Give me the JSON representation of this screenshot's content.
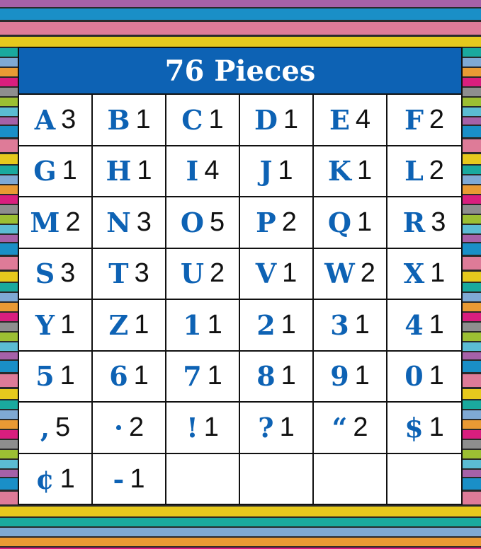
{
  "title": "76 Pieces",
  "pieces": [
    {
      "char": "A",
      "count": "3"
    },
    {
      "char": "B",
      "count": "1"
    },
    {
      "char": "C",
      "count": "1"
    },
    {
      "char": "D",
      "count": "1"
    },
    {
      "char": "E",
      "count": "4"
    },
    {
      "char": "F",
      "count": "2"
    },
    {
      "char": "G",
      "count": "1"
    },
    {
      "char": "H",
      "count": "1"
    },
    {
      "char": "I",
      "count": "4"
    },
    {
      "char": "J",
      "count": "1"
    },
    {
      "char": "K",
      "count": "1"
    },
    {
      "char": "L",
      "count": "2"
    },
    {
      "char": "M",
      "count": "2"
    },
    {
      "char": "N",
      "count": "3"
    },
    {
      "char": "O",
      "count": "5"
    },
    {
      "char": "P",
      "count": "2"
    },
    {
      "char": "Q",
      "count": "1"
    },
    {
      "char": "R",
      "count": "3"
    },
    {
      "char": "S",
      "count": "3"
    },
    {
      "char": "T",
      "count": "3"
    },
    {
      "char": "U",
      "count": "2"
    },
    {
      "char": "V",
      "count": "1"
    },
    {
      "char": "W",
      "count": "2"
    },
    {
      "char": "X",
      "count": "1"
    },
    {
      "char": "Y",
      "count": "1"
    },
    {
      "char": "Z",
      "count": "1"
    },
    {
      "char": "1",
      "count": "1"
    },
    {
      "char": "2",
      "count": "1"
    },
    {
      "char": "3",
      "count": "1"
    },
    {
      "char": "4",
      "count": "1"
    },
    {
      "char": "5",
      "count": "1"
    },
    {
      "char": "6",
      "count": "1"
    },
    {
      "char": "7",
      "count": "1"
    },
    {
      "char": "8",
      "count": "1"
    },
    {
      "char": "9",
      "count": "1"
    },
    {
      "char": "0",
      "count": "1"
    },
    {
      "char": ",",
      "count": "5"
    },
    {
      "char": "·",
      "count": "2"
    },
    {
      "char": "!",
      "count": "1"
    },
    {
      "char": "?",
      "count": "1"
    },
    {
      "char": "“",
      "count": "2"
    },
    {
      "char": "$",
      "count": "1"
    },
    {
      "char": "¢",
      "count": "1"
    },
    {
      "char": "-",
      "count": "1"
    },
    {
      "char": "",
      "count": ""
    },
    {
      "char": "",
      "count": ""
    },
    {
      "char": "",
      "count": ""
    },
    {
      "char": "",
      "count": ""
    }
  ],
  "colors": {
    "accent": "#0d62b4",
    "count_text": "#111111"
  }
}
